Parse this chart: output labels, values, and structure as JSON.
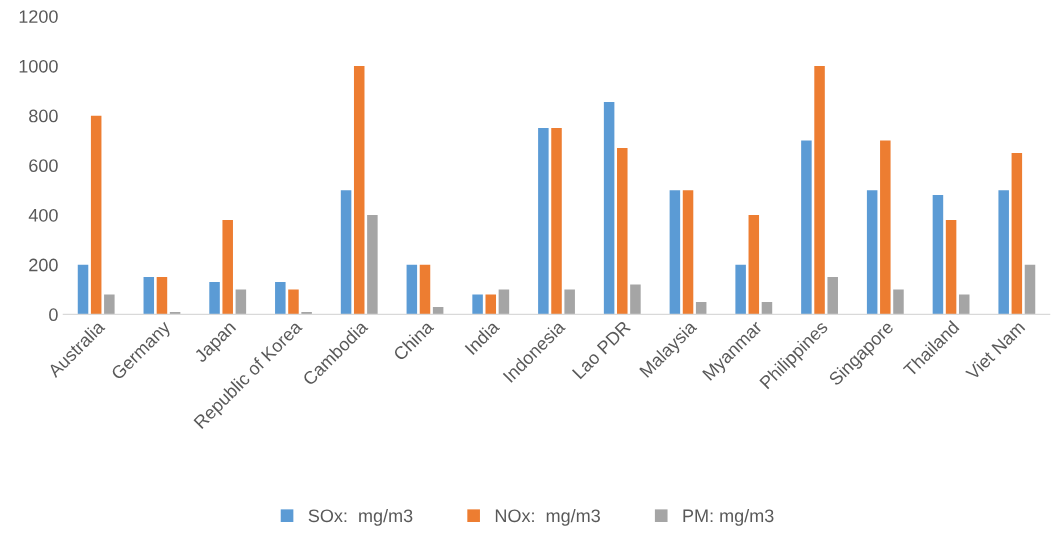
{
  "chart_data": {
    "type": "bar",
    "categories": [
      "Australia",
      "Germany",
      "Japan",
      "Republic of Korea",
      "Cambodia",
      "China",
      "India",
      "Indonesia",
      "Lao PDR",
      "Malaysia",
      "Myanmar",
      "Philippines",
      "Singapore",
      "Thailand",
      "Viet Nam"
    ],
    "series": [
      {
        "name": "SOx:  mg/m3",
        "color": "#5b9bd5",
        "values": [
          200,
          150,
          130,
          130,
          500,
          200,
          80,
          750,
          855,
          500,
          200,
          700,
          500,
          480,
          500
        ]
      },
      {
        "name": "NOx:  mg/m3",
        "color": "#ed7d31",
        "values": [
          800,
          150,
          380,
          100,
          1000,
          200,
          80,
          750,
          670,
          500,
          400,
          1000,
          700,
          380,
          650
        ]
      },
      {
        "name": "PM: mg/m3",
        "color": "#a5a5a5",
        "values": [
          80,
          10,
          100,
          10,
          400,
          30,
          100,
          100,
          120,
          50,
          50,
          150,
          100,
          80,
          200
        ]
      }
    ],
    "ylim": [
      0,
      1200
    ],
    "yticks": [
      0,
      200,
      400,
      600,
      800,
      1000,
      1200
    ],
    "grid": false,
    "legend": "bottom"
  }
}
